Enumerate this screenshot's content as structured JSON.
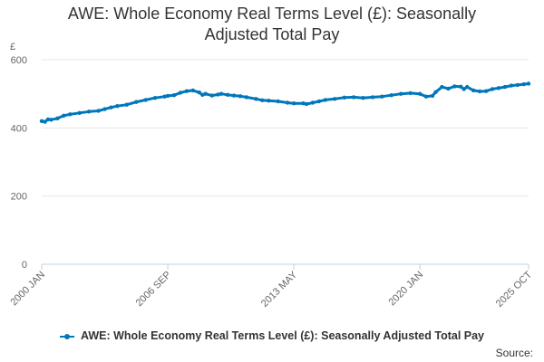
{
  "chart_data": {
    "type": "line",
    "title": "AWE: Whole Economy Real Terms Level (£): Seasonally Adjusted Total Pay",
    "title_lines": [
      "AWE: Whole Economy Real Terms Level (£): Seasonally",
      "Adjusted Total Pay"
    ],
    "y_unit": "£",
    "xlabel": "",
    "ylabel": "",
    "ylim": [
      0,
      600
    ],
    "y_ticks": [
      "0",
      "200",
      "400",
      "600"
    ],
    "grid": true,
    "x_tick_labels": [
      "2000 JAN",
      "2006 SEP",
      "2013 MAY",
      "2020 JAN",
      "2025 OCT"
    ],
    "x_range_months": [
      0,
      309
    ],
    "x_tick_months": [
      0,
      80,
      160,
      240,
      309
    ],
    "legend_position": "bottom",
    "series": [
      {
        "name": "AWE: Whole Economy Real Terms Level (£): Seasonally Adjusted Total Pay",
        "color": "#0077bb",
        "x": [
          0,
          2,
          4,
          6,
          10,
          14,
          18,
          24,
          30,
          36,
          40,
          44,
          48,
          54,
          60,
          66,
          72,
          78,
          80,
          84,
          88,
          92,
          96,
          100,
          102,
          104,
          108,
          112,
          114,
          118,
          122,
          126,
          130,
          136,
          140,
          144,
          150,
          156,
          160,
          166,
          168,
          172,
          176,
          180,
          186,
          192,
          198,
          204,
          210,
          216,
          222,
          228,
          234,
          240,
          244,
          248,
          250,
          254,
          258,
          262,
          266,
          268,
          270,
          274,
          278,
          282,
          286,
          290,
          294,
          298,
          302,
          306,
          309
        ],
        "values": [
          420,
          418,
          425,
          424,
          428,
          436,
          440,
          444,
          448,
          450,
          455,
          460,
          464,
          468,
          476,
          482,
          488,
          492,
          494,
          496,
          503,
          508,
          510,
          504,
          497,
          500,
          495,
          498,
          500,
          497,
          495,
          493,
          490,
          485,
          481,
          480,
          478,
          474,
          472,
          472,
          470,
          474,
          478,
          482,
          485,
          489,
          490,
          488,
          490,
          492,
          496,
          500,
          502,
          500,
          492,
          494,
          505,
          520,
          515,
          522,
          521,
          514,
          520,
          510,
          507,
          508,
          514,
          517,
          520,
          524,
          526,
          528,
          530
        ]
      }
    ]
  },
  "legend": {
    "label": "AWE: Whole Economy Real Terms Level (£): Seasonally Adjusted Total Pay"
  },
  "source": {
    "label": "Source:"
  }
}
